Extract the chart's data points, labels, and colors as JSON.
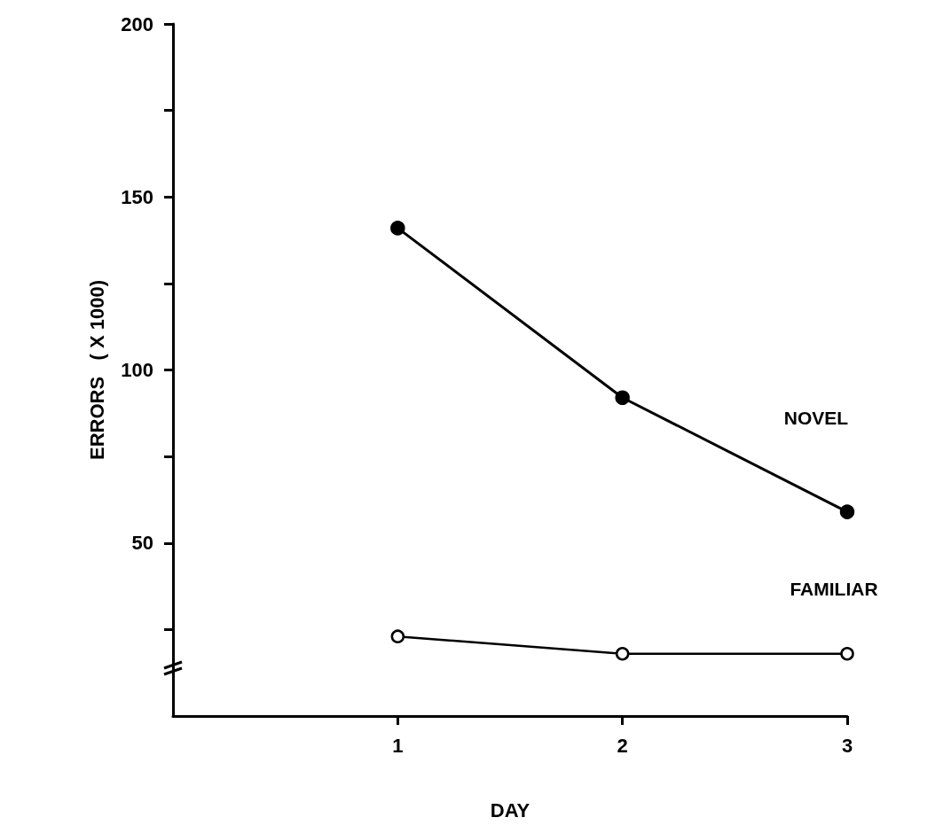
{
  "chart_data": {
    "type": "line",
    "xlabel": "DAY",
    "ylabel": "ERRORS   ( X 1000)",
    "x": [
      1,
      2,
      3
    ],
    "xlim": [
      0,
      3
    ],
    "xticks": [
      1,
      2,
      3
    ],
    "ylim": [
      0,
      200
    ],
    "yticks": [
      {
        "value": 25,
        "label": null
      },
      50,
      {
        "value": 75,
        "label": null
      },
      100,
      {
        "value": 125,
        "label": null
      },
      150,
      {
        "value": 175,
        "label": null
      },
      200
    ],
    "series": [
      {
        "name": "NOVEL",
        "color": "#000000",
        "values": [
          141,
          92,
          59
        ],
        "marker": "circle"
      },
      {
        "name": "FAMILIAR",
        "color": "#000000",
        "values": [
          23,
          18,
          18
        ],
        "marker": "circle"
      }
    ],
    "legend": false,
    "grid": false,
    "line_style": "solid"
  }
}
